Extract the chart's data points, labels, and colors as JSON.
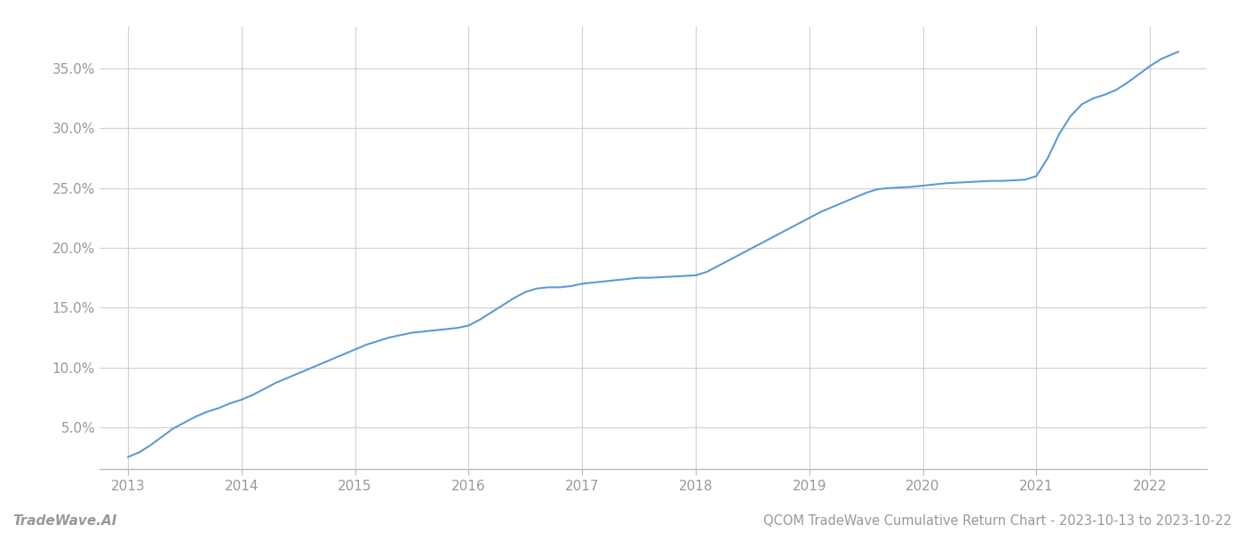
{
  "title": "QCOM TradeWave Cumulative Return Chart - 2023-10-13 to 2023-10-22",
  "watermark": "TradeWave.AI",
  "line_color": "#5b9bd5",
  "background_color": "#ffffff",
  "grid_color": "#cccccc",
  "x_years": [
    2013,
    2014,
    2015,
    2016,
    2017,
    2018,
    2019,
    2020,
    2021,
    2022
  ],
  "x_values": [
    2013.0,
    2013.1,
    2013.2,
    2013.3,
    2013.4,
    2013.5,
    2013.6,
    2013.7,
    2013.8,
    2013.9,
    2014.0,
    2014.1,
    2014.2,
    2014.3,
    2014.4,
    2014.5,
    2014.6,
    2014.7,
    2014.8,
    2014.9,
    2015.0,
    2015.1,
    2015.2,
    2015.3,
    2015.4,
    2015.5,
    2015.6,
    2015.7,
    2015.8,
    2015.9,
    2016.0,
    2016.1,
    2016.2,
    2016.3,
    2016.4,
    2016.5,
    2016.6,
    2016.7,
    2016.8,
    2016.9,
    2017.0,
    2017.1,
    2017.2,
    2017.3,
    2017.4,
    2017.5,
    2017.6,
    2017.7,
    2017.8,
    2017.9,
    2018.0,
    2018.1,
    2018.2,
    2018.3,
    2018.4,
    2018.5,
    2018.6,
    2018.7,
    2018.8,
    2018.9,
    2019.0,
    2019.1,
    2019.2,
    2019.3,
    2019.4,
    2019.5,
    2019.6,
    2019.7,
    2019.8,
    2019.9,
    2020.0,
    2020.1,
    2020.2,
    2020.3,
    2020.4,
    2020.5,
    2020.6,
    2020.7,
    2020.8,
    2020.9,
    2021.0,
    2021.1,
    2021.2,
    2021.3,
    2021.4,
    2021.5,
    2021.6,
    2021.7,
    2021.8,
    2021.9,
    2022.0,
    2022.1,
    2022.2,
    2022.25
  ],
  "y_values": [
    2.5,
    2.9,
    3.5,
    4.2,
    4.9,
    5.4,
    5.9,
    6.3,
    6.6,
    7.0,
    7.3,
    7.7,
    8.2,
    8.7,
    9.1,
    9.5,
    9.9,
    10.3,
    10.7,
    11.1,
    11.5,
    11.9,
    12.2,
    12.5,
    12.7,
    12.9,
    13.0,
    13.1,
    13.2,
    13.3,
    13.5,
    14.0,
    14.6,
    15.2,
    15.8,
    16.3,
    16.6,
    16.7,
    16.7,
    16.8,
    17.0,
    17.1,
    17.2,
    17.3,
    17.4,
    17.5,
    17.5,
    17.55,
    17.6,
    17.65,
    17.7,
    18.0,
    18.5,
    19.0,
    19.5,
    20.0,
    20.5,
    21.0,
    21.5,
    22.0,
    22.5,
    23.0,
    23.4,
    23.8,
    24.2,
    24.6,
    24.9,
    25.0,
    25.05,
    25.1,
    25.2,
    25.3,
    25.4,
    25.45,
    25.5,
    25.55,
    25.6,
    25.6,
    25.65,
    25.7,
    26.0,
    27.5,
    29.5,
    31.0,
    32.0,
    32.5,
    32.8,
    33.2,
    33.8,
    34.5,
    35.2,
    35.8,
    36.2,
    36.4
  ],
  "ylim": [
    1.5,
    38.5
  ],
  "yticks": [
    5.0,
    10.0,
    15.0,
    20.0,
    25.0,
    30.0,
    35.0
  ],
  "xlim": [
    2012.75,
    2022.5
  ],
  "line_width": 1.5,
  "font_color": "#999999",
  "title_fontsize": 10.5,
  "tick_fontsize": 11,
  "watermark_fontsize": 11
}
